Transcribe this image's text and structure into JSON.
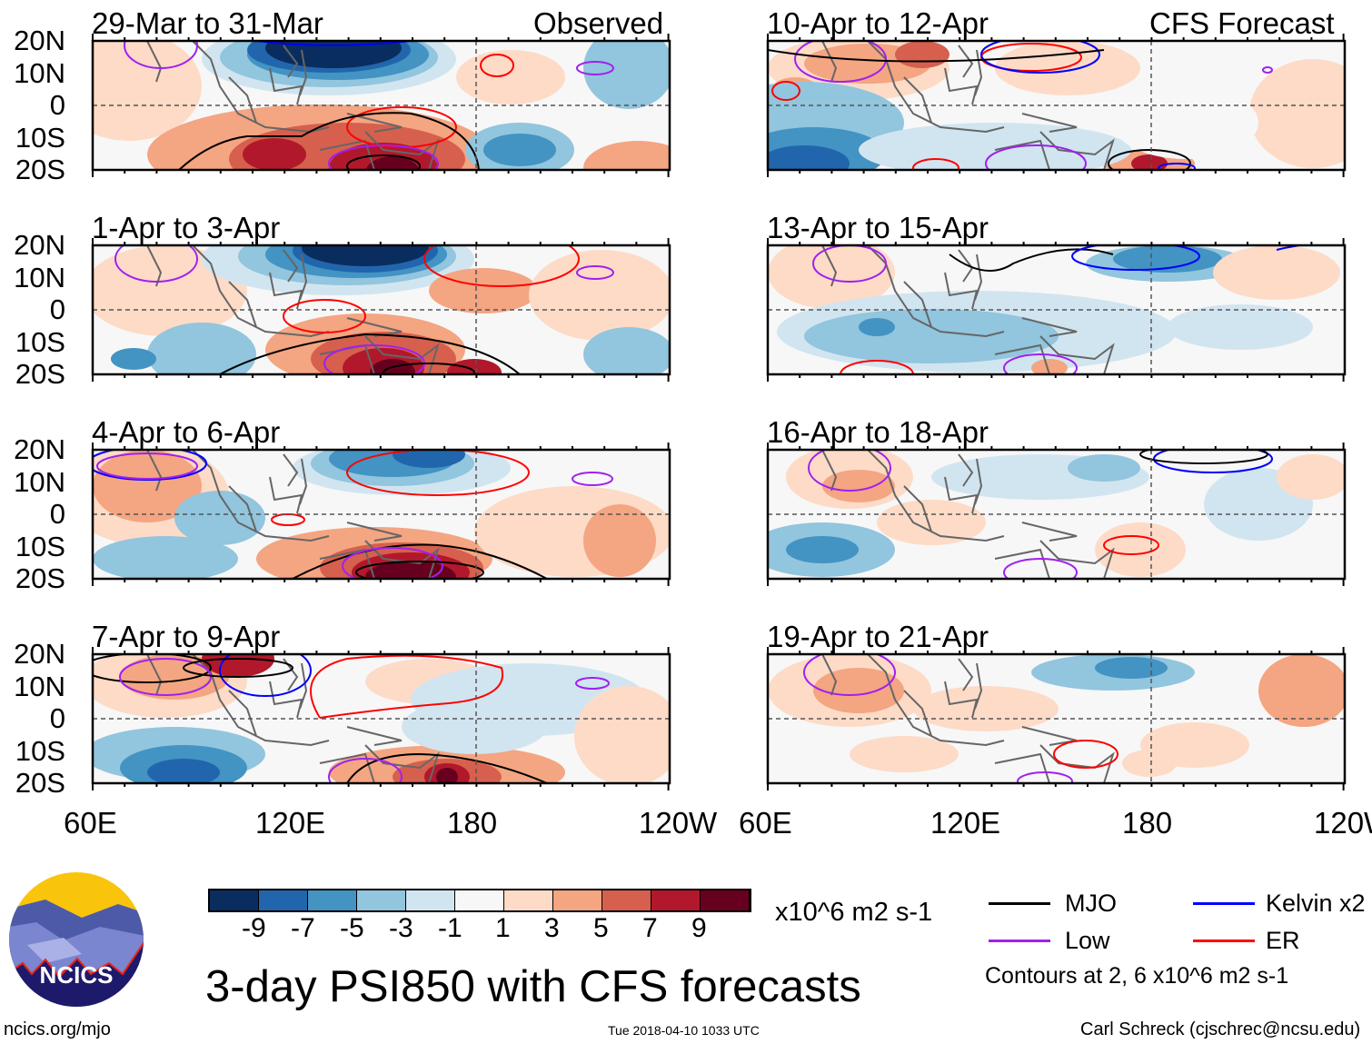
{
  "title": "3-day PSI850 with CFS forecasts",
  "left_header": "Observed",
  "right_header": "CFS Forecast",
  "lat_labels": [
    "20N",
    "10N",
    "0",
    "10S",
    "20S"
  ],
  "lon_labels": [
    "60E",
    "120E",
    "180",
    "120W"
  ],
  "colorbar": {
    "labels": [
      "-9",
      "-7",
      "-5",
      "-3",
      "-1",
      "1",
      "3",
      "5",
      "7",
      "9"
    ],
    "colors": [
      "#0a2d5f",
      "#2166ac",
      "#4393c3",
      "#92c5de",
      "#d1e5f0",
      "#f7f7f7",
      "#fddbc7",
      "#f4a582",
      "#d6604d",
      "#b2182b",
      "#67001f"
    ],
    "units": "x10^6 m2 s-1"
  },
  "legend": {
    "mjo": "MJO",
    "kelvin": "Kelvin x2",
    "low": "Low",
    "er": "ER",
    "contours": "Contours at 2, 6 x10^6 m2 s-1",
    "colors": {
      "mjo": "#000000",
      "kelvin": "#0000ff",
      "low": "#a020f0",
      "er": "#ff0000"
    }
  },
  "footer": {
    "url": "ncics.org/mjo",
    "timestamp": "Tue 2018-04-10 1033 UTC",
    "author": "Carl Schreck (cjschrec@ncsu.edu)",
    "logo_text": "NCICS"
  },
  "chart_data": {
    "type": "heatmap",
    "variable": "3-day PSI850 anomaly",
    "units": "x10^6 m2 s-1",
    "xlim": [
      "60E",
      "120W"
    ],
    "ylim": [
      "20S",
      "20N"
    ],
    "panels": [
      {
        "title": "29-Mar to 31-Mar",
        "source": "Observed"
      },
      {
        "title": "1-Apr to 3-Apr",
        "source": "Observed"
      },
      {
        "title": "4-Apr to 6-Apr",
        "source": "Observed"
      },
      {
        "title": "7-Apr to 9-Apr",
        "source": "Observed"
      },
      {
        "title": "10-Apr to 12-Apr",
        "source": "CFS Forecast"
      },
      {
        "title": "13-Apr to 15-Apr",
        "source": "CFS Forecast"
      },
      {
        "title": "16-Apr to 18-Apr",
        "source": "CFS Forecast"
      },
      {
        "title": "19-Apr to 21-Apr",
        "source": "CFS Forecast"
      }
    ]
  }
}
